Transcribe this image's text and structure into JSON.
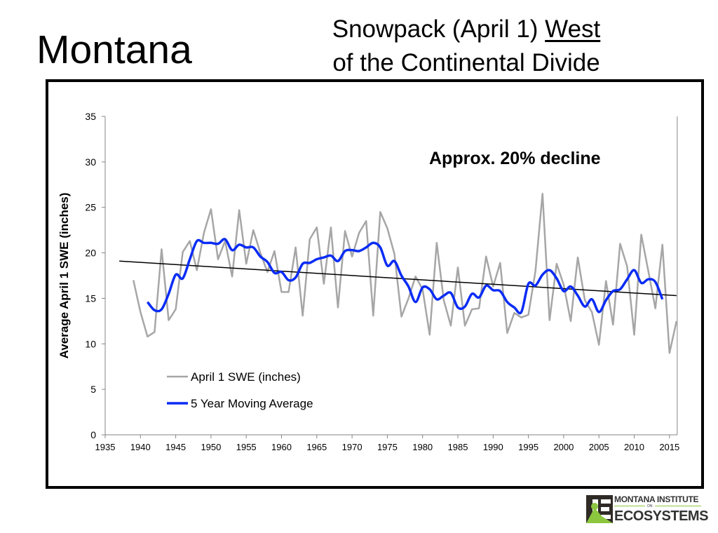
{
  "header": {
    "state": "Montana",
    "title_pre": "Snowpack (April 1) ",
    "title_underlined": "West",
    "title_line2": "of the Continental Divide"
  },
  "logo": {
    "line1": "MONTANA INSTITUTE",
    "on": "ON",
    "line2": "ECOSYSTEMS"
  },
  "chart_data": {
    "type": "line",
    "ylabel": "Average April 1 SWE (inches)",
    "xlabel": "",
    "xlim": [
      1935,
      2016
    ],
    "ylim": [
      0,
      35
    ],
    "xticks": [
      1935,
      1940,
      1945,
      1950,
      1955,
      1960,
      1965,
      1970,
      1975,
      1980,
      1985,
      1990,
      1995,
      2000,
      2005,
      2010,
      2015
    ],
    "yticks": [
      0,
      5,
      10,
      15,
      20,
      25,
      30,
      35
    ],
    "grid": false,
    "legend_placement": "bottom-left",
    "annotation": "Approx. 20% decline",
    "colors": {
      "swe": "#a6a6a6",
      "moving_avg": "#0a2cf5",
      "trend": "#000000"
    },
    "series": [
      {
        "name": "April 1 SWE (inches)",
        "x_start": 1939,
        "values": [
          17.0,
          13.5,
          10.8,
          11.3,
          20.4,
          12.6,
          13.8,
          20.1,
          21.3,
          18.1,
          22.2,
          24.8,
          19.3,
          21.3,
          17.4,
          24.7,
          18.8,
          22.5,
          20.0,
          17.9,
          20.2,
          15.7,
          15.7,
          20.6,
          13.1,
          21.5,
          22.8,
          16.6,
          22.8,
          14.0,
          22.4,
          19.6,
          22.2,
          23.5,
          13.1,
          24.5,
          22.7,
          19.9,
          13.0,
          15.0,
          17.4,
          16.0,
          11.0,
          21.1,
          14.8,
          12.0,
          18.4,
          12.0,
          13.8,
          13.9,
          19.6,
          16.3,
          18.9,
          11.2,
          13.4,
          12.9,
          13.2,
          18.0,
          26.5,
          12.6,
          18.8,
          16.5,
          12.5,
          19.5,
          14.8,
          13.5,
          9.9,
          16.9,
          12.1,
          21.0,
          18.5,
          11.0,
          22.0,
          18.0,
          13.9,
          20.9,
          9.0,
          12.5
        ]
      },
      {
        "name": "5 Year Moving Average",
        "x_start": 1941,
        "values": [
          14.6,
          13.7,
          13.8,
          15.5,
          17.6,
          17.2,
          19.3,
          21.3,
          21.1,
          21.1,
          21.0,
          21.5,
          20.3,
          20.9,
          20.6,
          20.6,
          19.6,
          19.0,
          17.8,
          17.9,
          17.0,
          17.3,
          18.8,
          18.9,
          19.3,
          19.5,
          19.7,
          19.1,
          20.2,
          20.3,
          20.2,
          20.6,
          21.1,
          20.6,
          18.6,
          19.1,
          17.5,
          16.3,
          14.6,
          16.2,
          16.0,
          14.9,
          15.3,
          15.6,
          14.0,
          14.1,
          15.5,
          15.1,
          16.4,
          15.9,
          15.8,
          14.6,
          14.0,
          13.5,
          16.6,
          16.4,
          17.6,
          18.1,
          17.2,
          15.8,
          16.3,
          15.3,
          14.1,
          14.9,
          13.5,
          14.8,
          15.8,
          16.0,
          17.1,
          18.1,
          16.7,
          17.1,
          16.8,
          14.9
        ]
      }
    ],
    "trend": {
      "x": [
        1937,
        2016
      ],
      "y": [
        19.1,
        15.3
      ]
    }
  }
}
